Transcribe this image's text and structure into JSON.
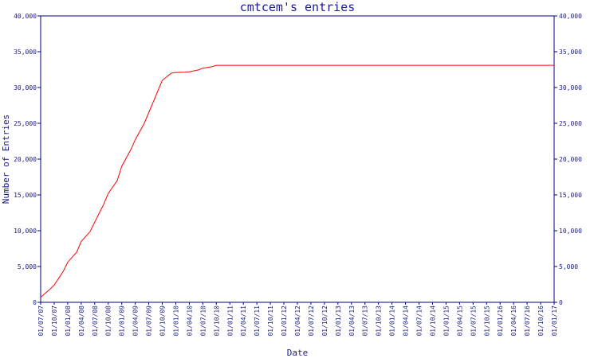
{
  "chart_data": {
    "type": "line",
    "title": "cmtcem's entries",
    "xlabel": "Date",
    "ylabel": "Number of Entries",
    "ylim": [
      0,
      40000
    ],
    "yticks": [
      0,
      5000,
      10000,
      15000,
      20000,
      25000,
      30000,
      35000,
      40000
    ],
    "ytick_labels": [
      "0",
      "5,000",
      "10,000",
      "15,000",
      "20,000",
      "25,000",
      "30,000",
      "35,000",
      "40,000"
    ],
    "x_ticks": [
      "01/07/07",
      "01/10/07",
      "01/01/08",
      "01/04/08",
      "01/07/08",
      "01/10/08",
      "01/01/09",
      "01/04/09",
      "01/07/09",
      "01/10/09",
      "01/01/10",
      "01/04/10",
      "01/07/10",
      "01/10/10",
      "01/01/11",
      "01/04/11",
      "01/07/11",
      "01/10/11",
      "01/01/12",
      "01/04/12",
      "01/07/12",
      "01/10/12",
      "01/01/13",
      "01/04/13",
      "01/07/13",
      "01/10/13",
      "01/01/14",
      "01/04/14",
      "01/07/14",
      "01/10/14",
      "01/01/15",
      "01/04/15",
      "01/07/15",
      "01/10/15",
      "01/01/16",
      "01/04/16",
      "01/07/16",
      "01/10/16",
      "01/01/17"
    ],
    "series": [
      {
        "color": "#ff0000",
        "x": [
          "01/07/07",
          "01/09/07",
          "01/10/07",
          "01/12/07",
          "01/01/08",
          "01/03/08",
          "01/04/08",
          "01/06/08",
          "01/07/08",
          "01/09/08",
          "01/10/08",
          "01/12/08",
          "01/01/09",
          "01/03/09",
          "01/04/09",
          "01/06/09",
          "01/07/09",
          "01/09/09",
          "01/10/09",
          "01/12/09",
          "01/01/10",
          "01/03/10",
          "01/04/10",
          "01/06/10",
          "01/07/10",
          "01/09/10",
          "01/10/10",
          "01/12/10",
          "01/01/11",
          "01/01/13",
          "01/01/15",
          "01/01/17"
        ],
        "values": [
          700,
          1800,
          2400,
          4300,
          5600,
          7000,
          8500,
          9900,
          11200,
          13700,
          15200,
          17000,
          19000,
          21300,
          22700,
          25000,
          26500,
          29500,
          31000,
          32000,
          32100,
          32150,
          32200,
          32450,
          32700,
          32900,
          33100,
          33100,
          33100,
          33100,
          33100,
          33100
        ]
      }
    ],
    "grid": false,
    "legend": "none"
  }
}
